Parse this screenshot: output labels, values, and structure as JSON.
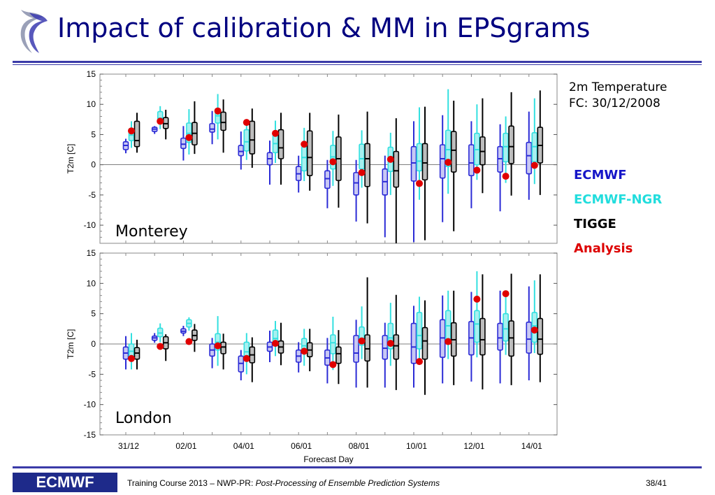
{
  "slide": {
    "title": "Impact of calibration & MM in EPSgrams",
    "info_line1": "2m Temperature",
    "info_line2": "FC: 30/12/2008",
    "footer_logo": "ECMWF",
    "footer_prefix": "Training Course 2013 – NWP-PR: ",
    "footer_italic": "Post-Processing of Ensemble Prediction Systems",
    "page": "38/41"
  },
  "legend": [
    {
      "label": "ECMWF",
      "color": "#1515c8"
    },
    {
      "label": "ECMWF-NGR",
      "color": "#22dddd"
    },
    {
      "label": "TIGGE",
      "color": "#000000"
    },
    {
      "label": "Analysis",
      "color": "#dd0000"
    }
  ],
  "chart_data": [
    {
      "type": "box",
      "label": "Monterey",
      "ylabel": "T2m [C]",
      "ylim": [
        -13,
        15
      ],
      "yticks": [
        -10,
        -5,
        0,
        5,
        10,
        15
      ],
      "series_colors": {
        "ECMWF": "#2b2bd6",
        "ECMWF-NGR": "#33e0e0",
        "TIGGE": "#000000",
        "Analysis": "#e00000"
      },
      "days": [
        {
          "ecmwf": [
            2.5,
            3.2,
            3.8
          ],
          "ecmwf_w": [
            1.9,
            4.3
          ],
          "ngr": [
            4.0,
            4.9,
            6.0
          ],
          "ngr_w": [
            2.8,
            7.2
          ],
          "tigge": [
            3.0,
            4.0,
            7.2
          ],
          "tigge_w": [
            2.0,
            8.6
          ],
          "analysis": 5.6
        },
        {
          "ecmwf": [
            5.5,
            5.9,
            6.2
          ],
          "ecmwf_w": [
            5.1,
            6.4
          ],
          "ngr": [
            7.0,
            7.7,
            8.8
          ],
          "ngr_w": [
            5.9,
            9.7
          ],
          "tigge": [
            6.0,
            6.8,
            7.8
          ],
          "tigge_w": [
            4.2,
            9.1
          ],
          "analysis": 7.2
        },
        {
          "ecmwf": [
            2.7,
            3.4,
            4.4
          ],
          "ecmwf_w": [
            0.7,
            6.4
          ],
          "ngr": [
            3.7,
            5.2,
            6.9
          ],
          "ngr_w": [
            1.7,
            9.2
          ],
          "tigge": [
            3.3,
            5.2,
            7.0
          ],
          "tigge_w": [
            1.8,
            10.5
          ],
          "analysis": 4.5
        },
        {
          "ecmwf": [
            5.4,
            5.9,
            6.8
          ],
          "ecmwf_w": [
            3.4,
            8.9
          ],
          "ngr": [
            6.9,
            8.1,
            9.3
          ],
          "ngr_w": [
            4.2,
            11.7
          ],
          "tigge": [
            5.7,
            7.0,
            8.7
          ],
          "tigge_w": [
            2.0,
            10.8
          ],
          "analysis": 8.9
        },
        {
          "ecmwf": [
            1.5,
            2.2,
            3.2
          ],
          "ecmwf_w": [
            -0.8,
            5.5
          ],
          "ngr": [
            2.3,
            3.8,
            5.8
          ],
          "ngr_w": [
            0.8,
            7.5
          ],
          "tigge": [
            1.8,
            4.1,
            7.2
          ],
          "tigge_w": [
            -0.5,
            9.3
          ],
          "analysis": 7.0
        },
        {
          "ecmwf": [
            0.0,
            1.0,
            2.0
          ],
          "ecmwf_w": [
            -3.3,
            4.0
          ],
          "ngr": [
            2.0,
            3.5,
            5.0
          ],
          "ngr_w": [
            0.3,
            7.3
          ],
          "tigge": [
            1.0,
            2.8,
            5.8
          ],
          "tigge_w": [
            -3.3,
            8.6
          ],
          "analysis": 5.2
        },
        {
          "ecmwf": [
            -2.6,
            -1.5,
            -0.3
          ],
          "ecmwf_w": [
            -4.6,
            1.5
          ],
          "ngr": [
            -1.0,
            1.2,
            3.0
          ],
          "ngr_w": [
            -2.7,
            6.1
          ],
          "tigge": [
            -1.8,
            1.2,
            5.6
          ],
          "tigge_w": [
            -4.3,
            8.6
          ],
          "analysis": 3.4
        },
        {
          "ecmwf": [
            -3.9,
            -2.3,
            -1.0
          ],
          "ecmwf_w": [
            -7.2,
            0.8
          ],
          "ngr": [
            -0.7,
            1.3,
            3.2
          ],
          "ngr_w": [
            -3.5,
            5.6
          ],
          "tigge": [
            -2.6,
            1.0,
            4.6
          ],
          "tigge_w": [
            -7.1,
            8.3
          ],
          "analysis": 0.5
        },
        {
          "ecmwf": [
            -5.0,
            -3.0,
            -1.3
          ],
          "ecmwf_w": [
            -9.4,
            0.8
          ],
          "ngr": [
            -0.7,
            1.0,
            3.4
          ],
          "ngr_w": [
            -3.8,
            5.7
          ],
          "tigge": [
            -3.6,
            1.0,
            3.5
          ],
          "tigge_w": [
            -9.7,
            8.8
          ],
          "analysis": -1.3
        },
        {
          "ecmwf": [
            -5.0,
            -2.8,
            -0.7
          ],
          "ecmwf_w": [
            -12.0,
            1.5
          ],
          "ngr": [
            -1.1,
            1.0,
            2.9
          ],
          "ngr_w": [
            -5.0,
            5.3
          ],
          "tigge": [
            -3.7,
            -1.0,
            2.2
          ],
          "tigge_w": [
            -13.0,
            7.7
          ],
          "analysis": 0.9
        },
        {
          "ecmwf": [
            -2.7,
            0.3,
            3.0
          ],
          "ecmwf_w": [
            -12.8,
            7.2
          ],
          "ngr": [
            -1.0,
            0.6,
            3.5
          ],
          "ngr_w": [
            -5.8,
            9.5
          ],
          "tigge": [
            -2.5,
            0.3,
            3.5
          ],
          "tigge_w": [
            -12.5,
            9.6
          ],
          "analysis": -3.1
        },
        {
          "ecmwf": [
            -2.2,
            1.0,
            3.3
          ],
          "ecmwf_w": [
            -9.5,
            8.2
          ],
          "ngr": [
            -0.3,
            2.5,
            5.7
          ],
          "ngr_w": [
            -4.8,
            12.5
          ],
          "tigge": [
            -1.2,
            2.4,
            5.5
          ],
          "tigge_w": [
            -11.0,
            10.6
          ],
          "analysis": 0.4
        },
        {
          "ecmwf": [
            -1.8,
            0.3,
            3.3
          ],
          "ecmwf_w": [
            -7.2,
            7.2
          ],
          "ngr": [
            0.0,
            2.5,
            5.2
          ],
          "ngr_w": [
            -2.5,
            10.0
          ],
          "tigge": [
            0.0,
            2.2,
            4.6
          ],
          "tigge_w": [
            -4.7,
            11.0
          ],
          "analysis": -0.9
        },
        {
          "ecmwf": [
            -1.2,
            1.0,
            3.0
          ],
          "ecmwf_w": [
            -7.7,
            6.7
          ],
          "ngr": [
            0.5,
            3.0,
            5.2
          ],
          "ngr_w": [
            -3.0,
            8.0
          ],
          "tigge": [
            0.2,
            3.0,
            6.4
          ],
          "tigge_w": [
            -5.1,
            12.0
          ],
          "analysis": -1.9
        },
        {
          "ecmwf": [
            -1.5,
            1.5,
            3.7
          ],
          "ecmwf_w": [
            -5.8,
            8.8
          ],
          "ngr": [
            0.5,
            3.0,
            5.3
          ],
          "ngr_w": [
            -3.2,
            11.0
          ],
          "tigge": [
            0.3,
            3.2,
            6.2
          ],
          "tigge_w": [
            -5.0,
            12.3
          ],
          "analysis": -0.1
        }
      ]
    },
    {
      "type": "box",
      "label": "London",
      "ylabel": "T2m [C]",
      "ylim": [
        -15,
        15
      ],
      "yticks": [
        -15,
        -10,
        -5,
        0,
        5,
        10,
        15
      ],
      "series_colors": {
        "ECMWF": "#2b2bd6",
        "ECMWF-NGR": "#33e0e0",
        "TIGGE": "#000000",
        "Analysis": "#e00000"
      },
      "days": [
        {
          "ecmwf": [
            -2.5,
            -1.5,
            -0.5
          ],
          "ecmwf_w": [
            -4.2,
            1.3
          ],
          "ngr": [
            -2.4,
            -1.2,
            0.0
          ],
          "ngr_w": [
            -4.2,
            1.8
          ],
          "tigge": [
            -2.5,
            -1.5,
            -0.6
          ],
          "tigge_w": [
            -4.2,
            0.7
          ],
          "analysis": -2.4
        },
        {
          "ecmwf": [
            0.6,
            1.0,
            1.3
          ],
          "ecmwf_w": [
            0.2,
            1.8
          ],
          "ngr": [
            1.2,
            1.8,
            2.6
          ],
          "ngr_w": [
            0.3,
            3.4
          ],
          "tigge": [
            -0.8,
            0.2,
            1.2
          ],
          "tigge_w": [
            -2.8,
            1.6
          ],
          "analysis": -0.4
        },
        {
          "ecmwf": [
            1.8,
            2.1,
            2.5
          ],
          "ecmwf_w": [
            1.3,
            3.0
          ],
          "ngr": [
            2.8,
            3.4,
            4.0
          ],
          "ngr_w": [
            2.2,
            4.4
          ],
          "tigge": [
            0.6,
            1.4,
            2.3
          ],
          "tigge_w": [
            -1.3,
            3.3
          ],
          "analysis": 0.4
        },
        {
          "ecmwf": [
            -2.0,
            -1.0,
            0.0
          ],
          "ecmwf_w": [
            -4.0,
            1.0
          ],
          "ngr": [
            -1.0,
            0.3,
            1.7
          ],
          "ngr_w": [
            -3.6,
            4.6
          ],
          "tigge": [
            -1.6,
            -0.5,
            0.3
          ],
          "tigge_w": [
            -4.2,
            1.7
          ],
          "analysis": -0.3
        },
        {
          "ecmwf": [
            -4.6,
            -3.2,
            -2.0
          ],
          "ecmwf_w": [
            -6.0,
            -1.0
          ],
          "ngr": [
            -2.6,
            -1.3,
            0.3
          ],
          "ngr_w": [
            -5.0,
            1.8
          ],
          "tigge": [
            -3.1,
            -1.8,
            -0.5
          ],
          "tigge_w": [
            -6.3,
            1.1
          ],
          "analysis": -2.4
        },
        {
          "ecmwf": [
            -1.2,
            -0.5,
            0.3
          ],
          "ecmwf_w": [
            -3.0,
            2.2
          ],
          "ngr": [
            -0.3,
            0.9,
            2.3
          ],
          "ngr_w": [
            -2.0,
            3.8
          ],
          "tigge": [
            -1.5,
            -0.5,
            0.5
          ],
          "tigge_w": [
            -3.5,
            3.5
          ],
          "analysis": 0.1
        },
        {
          "ecmwf": [
            -3.0,
            -2.0,
            -1.0
          ],
          "ecmwf_w": [
            -4.7,
            0.3
          ],
          "ngr": [
            -1.5,
            -0.3,
            0.9
          ],
          "ngr_w": [
            -3.6,
            2.5
          ],
          "tigge": [
            -2.1,
            -1.0,
            0.2
          ],
          "tigge_w": [
            -4.5,
            2.5
          ],
          "analysis": -1.2
        },
        {
          "ecmwf": [
            -3.5,
            -2.3,
            -1.0
          ],
          "ecmwf_w": [
            -6.5,
            1.0
          ],
          "ngr": [
            -1.6,
            0.2,
            1.5
          ],
          "ngr_w": [
            -4.3,
            4.5
          ],
          "tigge": [
            -3.2,
            -1.6,
            -0.5
          ],
          "tigge_w": [
            -6.6,
            2.3
          ],
          "analysis": -3.4
        },
        {
          "ecmwf": [
            -3.0,
            -1.5,
            1.4
          ],
          "ecmwf_w": [
            -7.2,
            4.0
          ],
          "ngr": [
            -0.2,
            0.9,
            2.8
          ],
          "ngr_w": [
            -2.5,
            6.2
          ],
          "tigge": [
            -2.8,
            -0.8,
            1.5
          ],
          "tigge_w": [
            -7.2,
            11.0
          ],
          "analysis": 0.5
        },
        {
          "ecmwf": [
            -2.5,
            -0.7,
            1.4
          ],
          "ecmwf_w": [
            -7.2,
            3.5
          ],
          "ngr": [
            -0.8,
            1.0,
            3.4
          ],
          "ngr_w": [
            -3.6,
            6.8
          ],
          "tigge": [
            -2.5,
            -0.3,
            1.5
          ],
          "tigge_w": [
            -7.6,
            8.1
          ],
          "analysis": 0.1
        },
        {
          "ecmwf": [
            -3.2,
            -0.5,
            3.4
          ],
          "ecmwf_w": [
            -7.2,
            6.3
          ],
          "ngr": [
            -0.8,
            1.4,
            5.2
          ],
          "ngr_w": [
            -2.5,
            7.8
          ],
          "tigge": [
            -2.5,
            0.5,
            2.7
          ],
          "tigge_w": [
            -8.4,
            7.2
          ],
          "analysis": -2.9
        },
        {
          "ecmwf": [
            -2.2,
            1.0,
            4.0
          ],
          "ecmwf_w": [
            -6.5,
            8.0
          ],
          "ngr": [
            0.0,
            3.0,
            5.5
          ],
          "ngr_w": [
            -2.5,
            8.8
          ],
          "tigge": [
            -2.0,
            0.7,
            3.5
          ],
          "tigge_w": [
            -6.8,
            8.8
          ],
          "analysis": 0.4
        },
        {
          "ecmwf": [
            -1.8,
            1.0,
            3.7
          ],
          "ecmwf_w": [
            -6.2,
            8.6
          ],
          "ngr": [
            0.3,
            3.3,
            5.5
          ],
          "ngr_w": [
            -2.2,
            12.0
          ],
          "tigge": [
            -1.8,
            0.7,
            4.2
          ],
          "tigge_w": [
            -7.5,
            11.5
          ],
          "analysis": 7.4
        },
        {
          "ecmwf": [
            -1.0,
            1.0,
            3.4
          ],
          "ecmwf_w": [
            -6.5,
            8.8
          ],
          "ngr": [
            0.5,
            2.5,
            5.0
          ],
          "ngr_w": [
            -1.8,
            8.5
          ],
          "tigge": [
            -2.0,
            1.0,
            3.8
          ],
          "tigge_w": [
            -6.8,
            11.6
          ],
          "analysis": 8.3
        },
        {
          "ecmwf": [
            -1.5,
            0.8,
            3.6
          ],
          "ecmwf_w": [
            -6.0,
            9.5
          ],
          "ngr": [
            0.3,
            3.0,
            5.2
          ],
          "ngr_w": [
            -1.5,
            10.5
          ],
          "tigge": [
            -1.7,
            0.8,
            4.2
          ],
          "tigge_w": [
            -6.3,
            11.5
          ],
          "analysis": 2.3
        }
      ]
    }
  ],
  "xaxis": {
    "label": "Forecast Day",
    "ticks": [
      "31/12",
      "02/01",
      "04/01",
      "06/01",
      "08/01",
      "10/01",
      "12/01",
      "14/01"
    ]
  }
}
